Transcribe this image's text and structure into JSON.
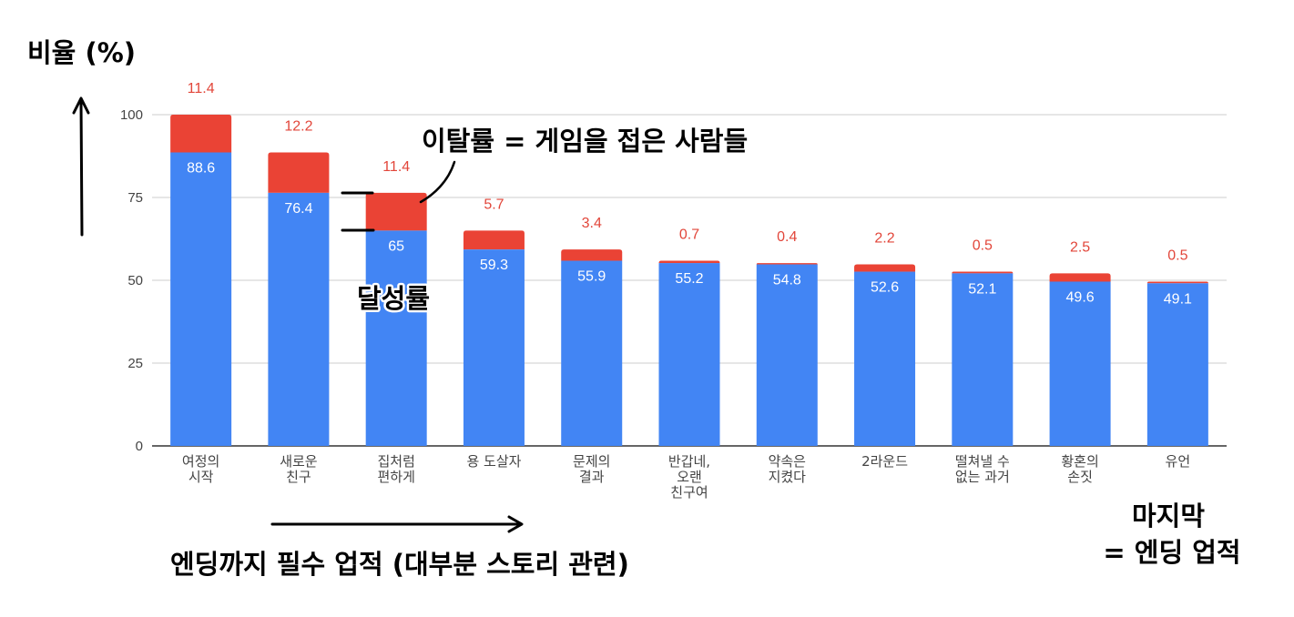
{
  "chart_data": {
    "type": "bar",
    "stacked": true,
    "ylabel": "비율 (%)",
    "ylim": [
      0,
      100
    ],
    "yticks": [
      0,
      25,
      50,
      75,
      100
    ],
    "grid": true,
    "categories": [
      [
        "여정의",
        "시작"
      ],
      [
        "새로운",
        "친구"
      ],
      [
        "집처럼",
        "편하게"
      ],
      [
        "용 도살자"
      ],
      [
        "문제의",
        "결과"
      ],
      [
        "반갑네,",
        "오랜",
        "친구여"
      ],
      [
        "약속은",
        "지켰다"
      ],
      [
        "2라운드"
      ],
      [
        "떨쳐낼 수",
        "없는 과거"
      ],
      [
        "황혼의",
        "손짓"
      ],
      [
        "유언"
      ]
    ],
    "series": [
      {
        "name": "달성률",
        "color": "#4285f4",
        "values": [
          88.6,
          76.4,
          65,
          59.3,
          55.9,
          55.2,
          54.8,
          52.6,
          52.1,
          49.6,
          49.1
        ]
      },
      {
        "name": "이탈률",
        "color": "#ea4335",
        "values": [
          11.4,
          12.2,
          11.4,
          5.7,
          3.4,
          0.7,
          0.4,
          2.2,
          0.5,
          2.5,
          0.5
        ]
      }
    ],
    "annotations": {
      "dropout": "이탈률 = 게임을 접은 사람들",
      "achievement": "달성률",
      "xlabel": "엔딩까지 필수 업적 (대부분 스토리 관련)",
      "final_line1": "마지막",
      "final_line2": "= 엔딩 업적"
    }
  }
}
